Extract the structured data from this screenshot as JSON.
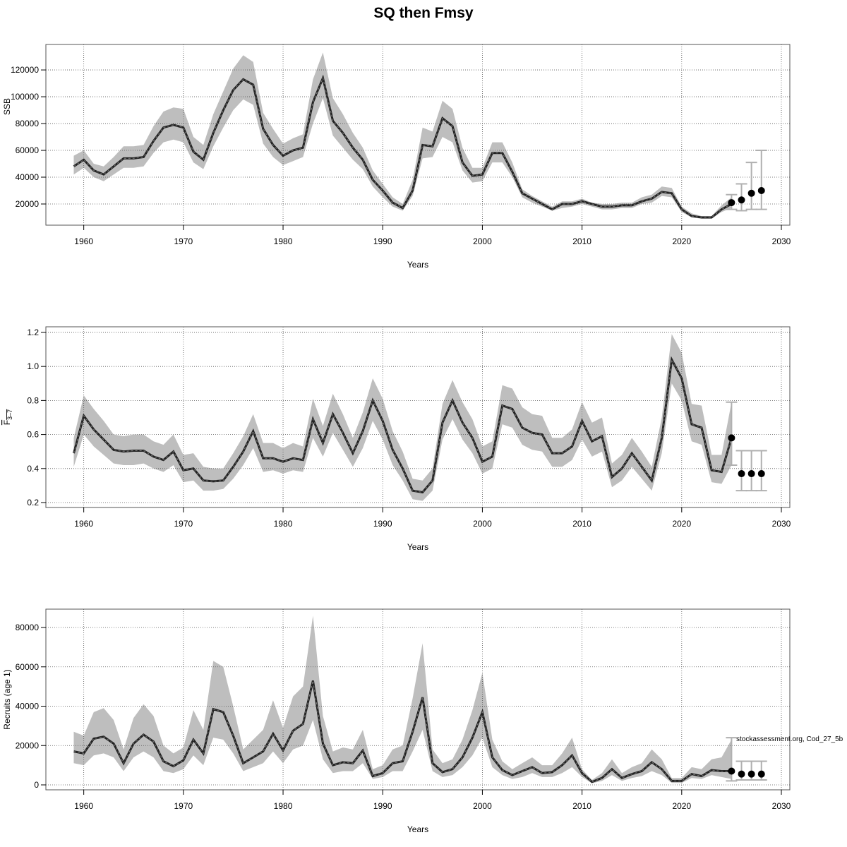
{
  "chart_data": [
    {
      "type": "line",
      "title": "SQ then Fmsy",
      "xlabel": "Years",
      "ylabel": "SSB",
      "xlim": [
        1956.2,
        2030.85
      ],
      "ylim": [
        4200,
        139000
      ],
      "grid": true,
      "xticks": [
        1960,
        1970,
        1980,
        1990,
        2000,
        2010,
        2020,
        2030
      ],
      "yticks": [
        20000,
        40000,
        60000,
        80000,
        100000,
        120000
      ],
      "x_start": 1959,
      "values": [
        48000,
        53000,
        45000,
        42000,
        48000,
        54000,
        54000,
        55000,
        67000,
        77000,
        79000,
        77000,
        59000,
        53000,
        73000,
        90000,
        105000,
        113000,
        109000,
        76000,
        64000,
        56000,
        60000,
        62000,
        96000,
        114000,
        82000,
        73000,
        62000,
        53000,
        38000,
        30000,
        21000,
        17000,
        30000,
        64000,
        63000,
        84000,
        78000,
        51000,
        41000,
        42000,
        58000,
        58000,
        44000,
        28000,
        24000,
        20000,
        16000,
        20000,
        20000,
        22000,
        20000,
        18000,
        18000,
        19000,
        19000,
        22000,
        24000,
        29000,
        28000,
        16000,
        11000,
        10000,
        10000,
        16000,
        20000
      ],
      "upper": [
        56000,
        60000,
        50000,
        48000,
        55000,
        63000,
        63000,
        64000,
        78000,
        89000,
        92000,
        91000,
        70000,
        64000,
        87000,
        104000,
        121000,
        131000,
        126000,
        88000,
        76000,
        65000,
        69000,
        72000,
        113000,
        133000,
        99000,
        87000,
        73000,
        62000,
        45000,
        35000,
        25000,
        20000,
        38000,
        77000,
        74000,
        97000,
        91000,
        62000,
        47000,
        47000,
        66000,
        66000,
        51000,
        31000,
        26000,
        22000,
        18000,
        22000,
        22000,
        24000,
        21000,
        20000,
        20000,
        21000,
        21000,
        25000,
        27000,
        33000,
        32000,
        18000,
        13000,
        11000,
        11000,
        19000,
        25000
      ],
      "lower": [
        42000,
        47000,
        40000,
        37000,
        42000,
        47000,
        47000,
        48000,
        58000,
        66000,
        68000,
        66000,
        51000,
        46000,
        63000,
        77000,
        90000,
        98000,
        94000,
        65000,
        55000,
        49000,
        52000,
        55000,
        80000,
        99000,
        71000,
        62000,
        53000,
        46000,
        33000,
        25000,
        18000,
        15000,
        26000,
        54000,
        55000,
        70000,
        66000,
        45000,
        36000,
        37000,
        51000,
        51000,
        40000,
        25000,
        21000,
        18000,
        15000,
        17000,
        18000,
        20000,
        18000,
        16000,
        16000,
        17000,
        17000,
        20000,
        21000,
        26000,
        25000,
        14000,
        10000,
        9000,
        9000,
        14000,
        17000
      ],
      "projection": {
        "x": [
          2025,
          2026,
          2027,
          2028
        ],
        "values": [
          21000,
          23000,
          28000,
          30000
        ],
        "lower": [
          16000,
          15000,
          16000,
          16000
        ],
        "upper": [
          27000,
          35000,
          51000,
          60000
        ]
      }
    },
    {
      "type": "line",
      "xlabel": "Years",
      "ylabel": "F",
      "ylabel_sub": "3–7",
      "xlim": [
        1956.2,
        2030.85
      ],
      "ylim": [
        0.171,
        1.233
      ],
      "grid": true,
      "xticks": [
        1960,
        1970,
        1980,
        1990,
        2000,
        2010,
        2020,
        2030
      ],
      "yticks": [
        0.2,
        0.4,
        0.6,
        0.8,
        1.0,
        1.2
      ],
      "x_start": 1959,
      "values": [
        0.49,
        0.71,
        0.63,
        0.57,
        0.51,
        0.5,
        0.505,
        0.505,
        0.47,
        0.45,
        0.5,
        0.39,
        0.4,
        0.33,
        0.325,
        0.33,
        0.41,
        0.5,
        0.62,
        0.46,
        0.46,
        0.44,
        0.46,
        0.45,
        0.69,
        0.55,
        0.72,
        0.61,
        0.49,
        0.62,
        0.8,
        0.68,
        0.51,
        0.4,
        0.27,
        0.26,
        0.33,
        0.67,
        0.8,
        0.67,
        0.58,
        0.44,
        0.47,
        0.77,
        0.75,
        0.64,
        0.61,
        0.6,
        0.49,
        0.49,
        0.53,
        0.68,
        0.56,
        0.59,
        0.35,
        0.4,
        0.49,
        0.41,
        0.33,
        0.58,
        1.04,
        0.93,
        0.66,
        0.64,
        0.39,
        0.38,
        0.58
      ],
      "upper": [
        0.58,
        0.83,
        0.75,
        0.68,
        0.6,
        0.59,
        0.6,
        0.6,
        0.56,
        0.54,
        0.6,
        0.48,
        0.49,
        0.41,
        0.4,
        0.4,
        0.49,
        0.59,
        0.72,
        0.55,
        0.55,
        0.52,
        0.55,
        0.53,
        0.81,
        0.65,
        0.84,
        0.72,
        0.58,
        0.73,
        0.93,
        0.81,
        0.62,
        0.5,
        0.34,
        0.33,
        0.4,
        0.78,
        0.92,
        0.79,
        0.69,
        0.53,
        0.56,
        0.89,
        0.87,
        0.76,
        0.72,
        0.71,
        0.58,
        0.58,
        0.63,
        0.79,
        0.67,
        0.7,
        0.43,
        0.48,
        0.58,
        0.5,
        0.41,
        0.7,
        1.19,
        1.08,
        0.78,
        0.77,
        0.48,
        0.48,
        0.79
      ],
      "lower": [
        0.41,
        0.6,
        0.53,
        0.48,
        0.43,
        0.42,
        0.42,
        0.43,
        0.4,
        0.38,
        0.42,
        0.32,
        0.33,
        0.27,
        0.27,
        0.28,
        0.34,
        0.42,
        0.52,
        0.38,
        0.39,
        0.37,
        0.39,
        0.38,
        0.58,
        0.47,
        0.61,
        0.51,
        0.41,
        0.52,
        0.68,
        0.57,
        0.42,
        0.33,
        0.22,
        0.21,
        0.27,
        0.57,
        0.69,
        0.57,
        0.49,
        0.37,
        0.4,
        0.66,
        0.64,
        0.54,
        0.51,
        0.5,
        0.41,
        0.41,
        0.45,
        0.57,
        0.47,
        0.5,
        0.29,
        0.33,
        0.41,
        0.34,
        0.27,
        0.49,
        0.9,
        0.8,
        0.56,
        0.54,
        0.32,
        0.31,
        0.42
      ],
      "projection": {
        "x": [
          2025,
          2026,
          2027,
          2028
        ],
        "values": [
          0.58,
          0.37,
          0.37,
          0.37
        ],
        "lower": [
          0.42,
          0.27,
          0.27,
          0.27
        ],
        "upper": [
          0.79,
          0.505,
          0.505,
          0.505
        ]
      }
    },
    {
      "type": "line",
      "xlabel": "Years",
      "ylabel": "Recruits (age 1)",
      "xlim": [
        1956.2,
        2030.85
      ],
      "ylim": [
        -2510,
        89330
      ],
      "grid": true,
      "xticks": [
        1960,
        1970,
        1980,
        1990,
        2000,
        2010,
        2020,
        2030
      ],
      "yticks": [
        0,
        20000,
        40000,
        60000,
        80000
      ],
      "x_start": 1959,
      "values": [
        17000,
        16000,
        23500,
        24500,
        21000,
        11000,
        21000,
        25500,
        22000,
        12000,
        9500,
        12500,
        23000,
        16000,
        38500,
        37000,
        25000,
        11000,
        14000,
        17000,
        26000,
        17500,
        27500,
        31000,
        53000,
        21000,
        10000,
        11500,
        11000,
        17500,
        4500,
        6000,
        11000,
        12000,
        27000,
        44500,
        11000,
        6500,
        8000,
        14000,
        24000,
        37000,
        14000,
        7500,
        5000,
        7000,
        9000,
        6000,
        6500,
        10000,
        15000,
        6000,
        1500,
        3500,
        8000,
        3500,
        5500,
        7000,
        11500,
        8000,
        2000,
        2000,
        5500,
        4500,
        7500,
        7000,
        7000
      ],
      "upper": [
        27000,
        25000,
        37000,
        39000,
        33000,
        18000,
        34000,
        41000,
        35000,
        20000,
        16000,
        19000,
        38000,
        28000,
        63000,
        60000,
        40000,
        18000,
        23000,
        28000,
        43000,
        29000,
        45000,
        50000,
        86000,
        35000,
        17000,
        19000,
        18000,
        28000,
        8000,
        10000,
        18000,
        20000,
        44000,
        72000,
        18000,
        11000,
        13000,
        23000,
        38000,
        57000,
        23000,
        12000,
        8000,
        11000,
        14000,
        10000,
        10000,
        16000,
        24000,
        8000,
        2500,
        6000,
        13000,
        6000,
        9000,
        11000,
        18000,
        13000,
        3500,
        3500,
        9000,
        8000,
        13000,
        14000,
        23000
      ],
      "lower": [
        11000,
        10000,
        15000,
        16000,
        14000,
        7000,
        14000,
        17000,
        14000,
        7000,
        6000,
        8000,
        15000,
        10000,
        24000,
        23000,
        16000,
        7000,
        9000,
        11000,
        17000,
        11000,
        18000,
        20000,
        33000,
        13000,
        6000,
        7000,
        7000,
        11000,
        3000,
        4000,
        7000,
        7000,
        17000,
        28000,
        7000,
        4000,
        5000,
        9000,
        15000,
        24000,
        9000,
        5000,
        3000,
        4000,
        6000,
        4000,
        4000,
        6000,
        9000,
        4000,
        800,
        2000,
        5000,
        2000,
        3500,
        4500,
        7000,
        5000,
        1000,
        1000,
        3500,
        3000,
        5000,
        4000,
        3000
      ],
      "projection": {
        "x": [
          2025,
          2026,
          2027,
          2028
        ],
        "values": [
          7000,
          5500,
          5500,
          5500
        ],
        "lower": [
          2000,
          2500,
          2500,
          2500
        ],
        "upper": [
          24000,
          12000,
          12000,
          12000
        ]
      },
      "annotation": "stockassessment.org, Cod_27_5b"
    }
  ],
  "colors": {
    "band": "#bebebe",
    "line": "#000000",
    "errorbar": "#b0b0b0",
    "point": "#000000"
  }
}
